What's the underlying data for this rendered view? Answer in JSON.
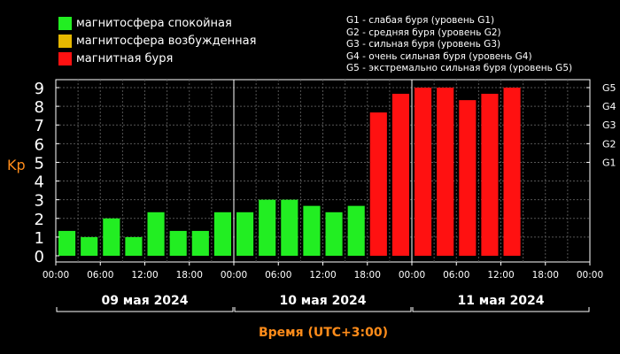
{
  "legend": [
    {
      "label": "магнитосфера спокойная",
      "color": "#22ee22"
    },
    {
      "label": "магнитосфера возбужденная",
      "color": "#e6b800"
    },
    {
      "label": "магнитная буря",
      "color": "#ff1111"
    }
  ],
  "storm_levels": [
    "G1 - слабая буря (уровень G1)",
    "G2 - средняя буря (уровень G2)",
    "G3 - сильная буря (уровень G3)",
    "G4 - очень сильная буря (уровень G4)",
    "G5 - экстремально сильная буря (уровень G5)"
  ],
  "chart_data": {
    "type": "bar",
    "ylabel": "Kp",
    "xlabel": "Время (UTC+3:00)",
    "ylim": [
      0,
      9
    ],
    "yticks": [
      "0",
      "1",
      "2",
      "3",
      "4",
      "5",
      "6",
      "7",
      "8",
      "9"
    ],
    "right_ticks": [
      {
        "value": 5,
        "label": "G1"
      },
      {
        "value": 6,
        "label": "G2"
      },
      {
        "value": 7,
        "label": "G3"
      },
      {
        "value": 8,
        "label": "G4"
      },
      {
        "value": 9,
        "label": "G5"
      }
    ],
    "xticks": [
      "00:00",
      "06:00",
      "12:00",
      "18:00",
      "00:00",
      "06:00",
      "12:00",
      "18:00",
      "00:00",
      "06:00",
      "12:00",
      "18:00",
      "00:00"
    ],
    "days": [
      "09 мая 2024",
      "10 мая 2024",
      "11 мая 2024"
    ],
    "slots_total": 24,
    "grid": true,
    "values": [
      1.33,
      1.0,
      2.0,
      1.0,
      2.33,
      1.33,
      1.33,
      2.33,
      2.33,
      3.0,
      3.0,
      2.67,
      2.33,
      2.67,
      7.67,
      8.67,
      9.0,
      9.0,
      8.33,
      8.67,
      9.0
    ],
    "colors": [
      "#22ee22",
      "#22ee22",
      "#22ee22",
      "#22ee22",
      "#22ee22",
      "#22ee22",
      "#22ee22",
      "#22ee22",
      "#22ee22",
      "#22ee22",
      "#22ee22",
      "#22ee22",
      "#22ee22",
      "#22ee22",
      "#ff1111",
      "#ff1111",
      "#ff1111",
      "#ff1111",
      "#ff1111",
      "#ff1111",
      "#ff1111"
    ]
  }
}
